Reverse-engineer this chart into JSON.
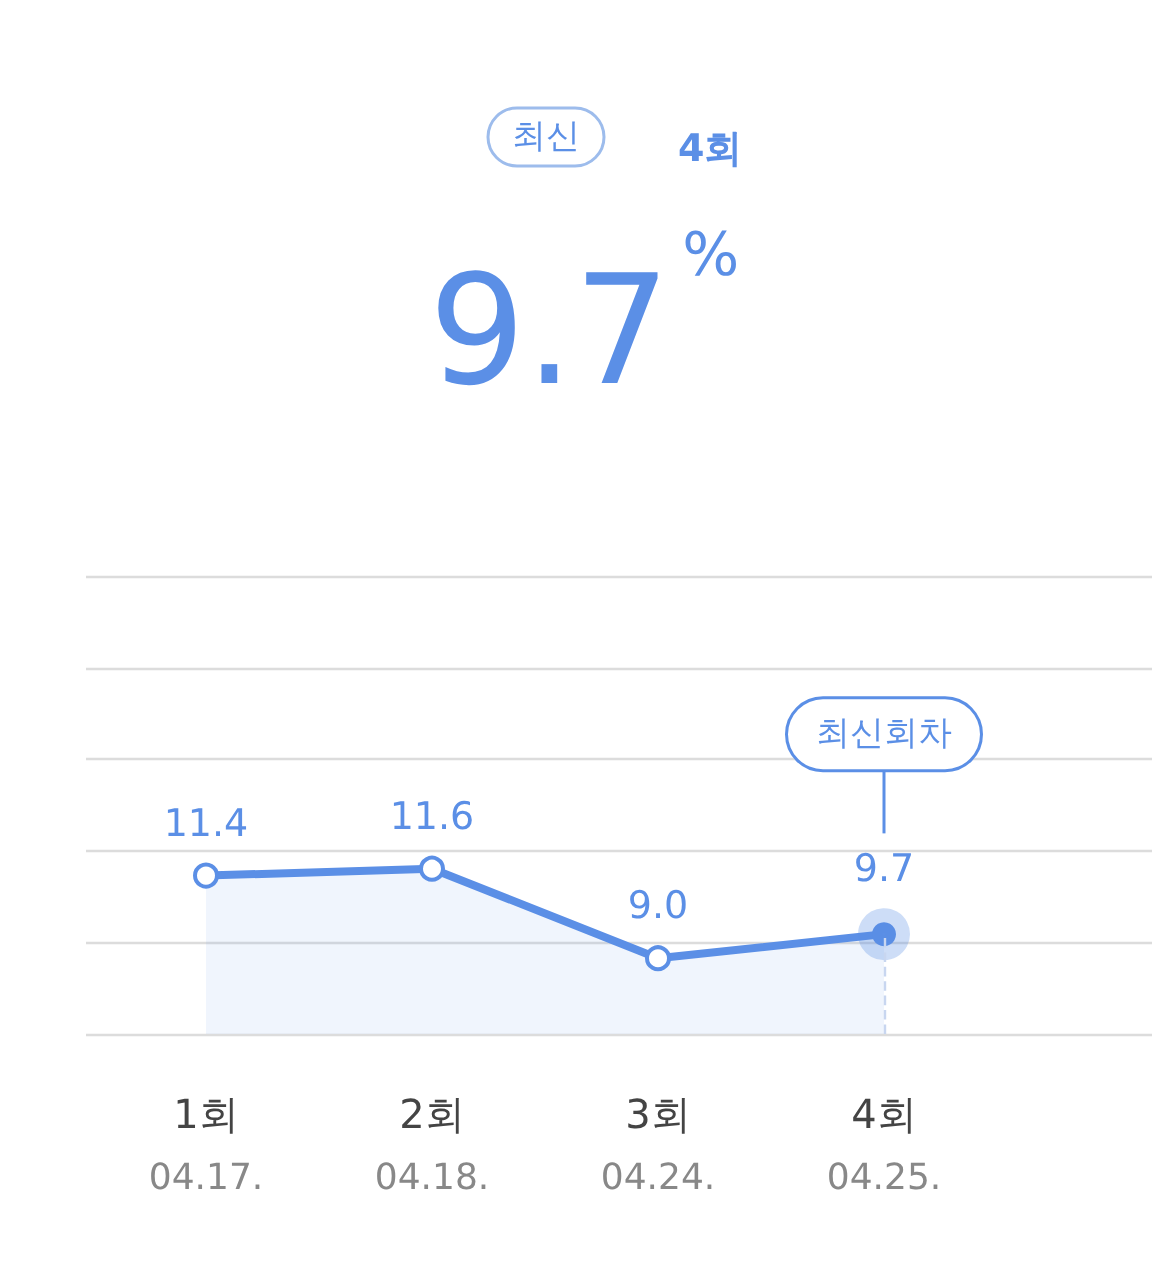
{
  "chart_data": {
    "type": "area",
    "title": "9.7$^{%}$",
    "annotations": [
      "최신",
      "4회",
      "최신회차"
    ],
    "categories": [
      "1회\n04.17.",
      "2회\n04.18.",
      "3회\n04.24.",
      "4회\n04.25."
    ],
    "series": [
      {
        "color": "#5b8fe6",
        "values": [
          11.4,
          11.6,
          9.0,
          9.7
        ],
        "value_labels": [
          "11.4",
          "11.6",
          "9.0",
          "9.7"
        ]
      }
    ],
    "ylim": [
      6.8,
      20.1
    ],
    "yticks": [
      {
        "value": 6.8,
        "label": null
      },
      {
        "value": 9.46,
        "label": null
      },
      {
        "value": 12.12,
        "label": null
      },
      {
        "value": 14.78,
        "label": null
      },
      {
        "value": 17.44,
        "label": null
      },
      {
        "value": 20.1,
        "label": null
      }
    ],
    "ref_lines": [
      {
        "axis": "x",
        "value": "4회\n04.25.",
        "color": "#c8d6f0",
        "line_style": "dashed"
      }
    ],
    "grid": "y",
    "marker": "circle"
  }
}
